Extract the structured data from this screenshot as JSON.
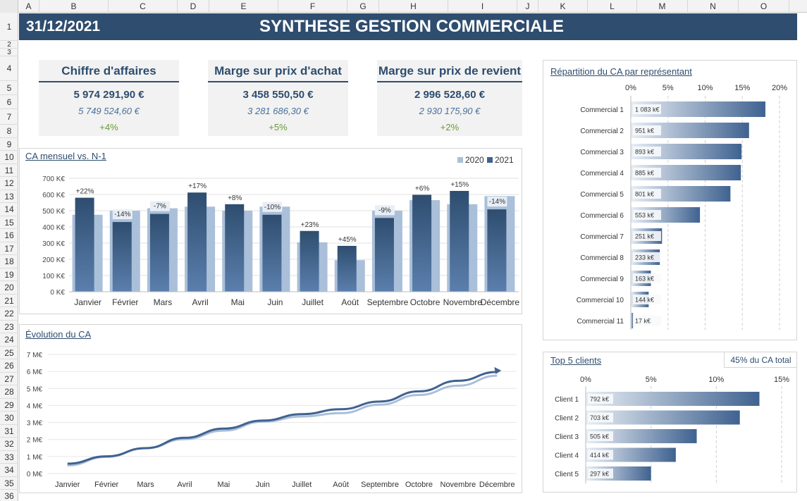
{
  "columns": [
    "A",
    "B",
    "C",
    "D",
    "E",
    "F",
    "G",
    "H",
    "I",
    "J",
    "K",
    "L",
    "M",
    "N",
    "O"
  ],
  "rows": [
    "1",
    "2",
    "3",
    "4",
    "5",
    "6",
    "7",
    "8",
    "9",
    "10",
    "11",
    "12",
    "13",
    "14",
    "15",
    "16",
    "17",
    "18",
    "19",
    "20",
    "21",
    "22",
    "23",
    "24",
    "25",
    "26",
    "27",
    "28",
    "29",
    "30",
    "31",
    "32",
    "33",
    "34",
    "35",
    "36"
  ],
  "header": {
    "date": "31/12/2021",
    "title": "SYNTHESE GESTION COMMERCIALE"
  },
  "kpis": [
    {
      "title": "Chiffre d'affaires",
      "value": "5 974 291,90 €",
      "previous": "5 749 524,60 €",
      "change": "+4%"
    },
    {
      "title": "Marge sur prix d'achat",
      "value": "3 458 550,50 €",
      "previous": "3 281 686,30 €",
      "change": "+5%"
    },
    {
      "title": "Marge sur prix de revient",
      "value": "2 996 528,60 €",
      "previous": "2 930 175,90 €",
      "change": "+2%"
    }
  ],
  "colors": {
    "banner": "#2e4d6f",
    "bar_2021": "#3f6290",
    "bar_2020": "#aabfd9",
    "positive": "#6a9a3a"
  },
  "chart_data": [
    {
      "type": "bar",
      "title": "CA mensuel vs. N-1",
      "categories": [
        "Janvier",
        "Février",
        "Mars",
        "Avril",
        "Mai",
        "Juin",
        "Juillet",
        "Août",
        "Septembre",
        "Octobre",
        "Novembre",
        "Décembre"
      ],
      "series": [
        {
          "name": "2020",
          "values": [
            475,
            500,
            515,
            525,
            500,
            525,
            305,
            195,
            500,
            565,
            540,
            590
          ]
        },
        {
          "name": "2021",
          "values": [
            580,
            430,
            480,
            612,
            540,
            475,
            375,
            283,
            455,
            598,
            622,
            508
          ]
        }
      ],
      "labels": [
        "+22%",
        "-14%",
        "-7%",
        "+17%",
        "+8%",
        "-10%",
        "+23%",
        "+45%",
        "-9%",
        "+6%",
        "+15%",
        "-14%"
      ],
      "yticks": [
        "0 K€",
        "100 K€",
        "200 K€",
        "300 K€",
        "400 K€",
        "500 K€",
        "600 K€",
        "700 K€"
      ],
      "ylim": [
        0,
        700
      ],
      "legend": "top-right"
    },
    {
      "type": "line",
      "title": "Évolution du CA",
      "categories": [
        "Janvier",
        "Février",
        "Mars",
        "Avril",
        "Mai",
        "Juin",
        "Juillet",
        "Août",
        "Septembre",
        "Octobre",
        "Novembre",
        "Décembre"
      ],
      "series": [
        {
          "name": "2020",
          "values": [
            0.48,
            0.98,
            1.49,
            2.02,
            2.52,
            3.05,
            3.35,
            3.55,
            4.05,
            4.62,
            5.16,
            5.75
          ]
        },
        {
          "name": "2021",
          "values": [
            0.58,
            1.01,
            1.49,
            2.1,
            2.64,
            3.11,
            3.49,
            3.78,
            4.23,
            4.83,
            5.45,
            5.97
          ]
        }
      ],
      "yticks": [
        "0 M€",
        "1 M€",
        "2 M€",
        "3 M€",
        "4 M€",
        "5 M€",
        "6 M€",
        "7 M€"
      ],
      "ylim": [
        0,
        7
      ]
    },
    {
      "type": "bar",
      "title": "Répartition du CA par représentant",
      "categories": [
        "Commercial 1",
        "Commercial 2",
        "Commercial 3",
        "Commercial 4",
        "Commercial 5",
        "Commercial 6",
        "Commercial 7",
        "Commercial 8",
        "Commercial 9",
        "Commercial 10",
        "Commercial 11"
      ],
      "values": [
        18.1,
        15.9,
        14.9,
        14.8,
        13.4,
        9.3,
        4.2,
        3.9,
        2.7,
        2.4,
        0.3
      ],
      "value_labels": [
        "1 083 k€",
        "951 k€",
        "893 k€",
        "885 k€",
        "801 k€",
        "553 k€",
        "251 k€",
        "233 k€",
        "163 k€",
        "144 k€",
        "17 k€"
      ],
      "xticks": [
        "0%",
        "5%",
        "10%",
        "15%",
        "20%"
      ],
      "xlim": [
        0,
        20
      ]
    },
    {
      "type": "bar",
      "title": "Top 5 clients",
      "note": "45% du CA total",
      "categories": [
        "Client 1",
        "Client 2",
        "Client 3",
        "Client 4",
        "Client 5"
      ],
      "values": [
        13.3,
        11.8,
        8.5,
        6.9,
        5.0
      ],
      "value_labels": [
        "792 k€",
        "703 k€",
        "505 k€",
        "414 k€",
        "297 k€"
      ],
      "xticks": [
        "0%",
        "5%",
        "10%",
        "15%"
      ],
      "xlim": [
        0,
        15
      ]
    }
  ]
}
